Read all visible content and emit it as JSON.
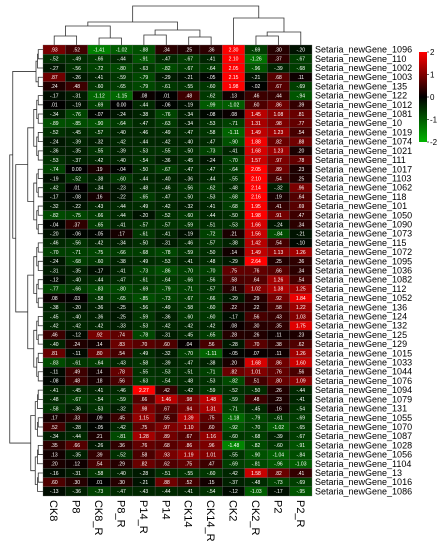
{
  "chart_data": {
    "type": "heatmap",
    "title": "",
    "columns": [
      "CK8",
      "P8",
      "CK8_R",
      "P8_R",
      "P14_R",
      "P14",
      "CK14",
      "CK14_R",
      "CK2",
      "CK2_R",
      "P2",
      "P2_R"
    ],
    "rows": [
      "Setaria_newGene_1096",
      "Setaria_newGene_110",
      "Setaria_newGene_1002",
      "Setaria_newGene_1003",
      "Setaria_newGene_135",
      "Setaria_newGene_122",
      "Setaria_newGene_1012",
      "Setaria_newGene_1081",
      "Setaria_newGene_10",
      "Setaria_newGene_1019",
      "Setaria_newGene_1074",
      "Setaria_newGene_1021",
      "Setaria_newGene_111",
      "Setaria_newGene_1017",
      "Setaria_newGene_1103",
      "Setaria_newGene_1062",
      "Setaria_newGene_118",
      "Setaria_newGene_101",
      "Setaria_newGene_1050",
      "Setaria_newGene_1090",
      "Setaria_newGene_1073",
      "Setaria_newGene_115",
      "Setaria_newGene_1072",
      "Setaria_newGene_1095",
      "Setaria_newGene_1036",
      "Setaria_newGene_1082",
      "Setaria_newGene_112",
      "Setaria_newGene_1052",
      "Setaria_newGene_136",
      "Setaria_newGene_124",
      "Setaria_newGene_132",
      "Setaria_newGene_125",
      "Setaria_newGene_129",
      "Setaria_newGene_1015",
      "Setaria_newGene_1033",
      "Setaria_newGene_1044",
      "Setaria_newGene_1076",
      "Setaria_newGene_1094",
      "Setaria_newGene_1079",
      "Setaria_newGene_131",
      "Setaria_newGene_1055",
      "Setaria_newGene_1070",
      "Setaria_newGene_1087",
      "Setaria_newGene_1028",
      "Setaria_newGene_1056",
      "Setaria_newGene_1104",
      "Setaria_newGene_13",
      "Setaria_newGene_1016",
      "Setaria_newGene_1086"
    ],
    "values": [
      [
        0.93,
        0.52,
        -1.41,
        -1.02,
        -0.88,
        0.34,
        0.25,
        0.36,
        2.3,
        -0.69,
        0.3,
        -0.2
      ],
      [
        -0.52,
        -0.49,
        -0.66,
        -0.44,
        -0.91,
        -0.47,
        -0.67,
        -0.41,
        2.1,
        -1.26,
        0.37,
        -0.67
      ],
      [
        -0.27,
        -0.56,
        -0.72,
        -0.8,
        -0.63,
        -0.82,
        -0.67,
        -0.64,
        2.05,
        -0.96,
        -0.39,
        -0.68
      ],
      [
        0.87,
        -0.26,
        -0.41,
        -0.59,
        -0.79,
        -0.29,
        -0.21,
        -0.05,
        2.15,
        -0.21,
        0.68,
        0.11
      ],
      [
        0.24,
        0.48,
        -0.6,
        -0.65,
        -0.79,
        -0.61,
        -0.55,
        -0.6,
        1.98,
        -0.02,
        0.67,
        -0.69
      ],
      [
        -0.17,
        -0.31,
        -1.12,
        -1.15,
        0.08,
        0.01,
        0.48,
        -0.62,
        0.13,
        0.46,
        0.44,
        -0.94
      ],
      [
        0.01,
        -0.19,
        -0.69,
        0.0,
        -0.44,
        -0.06,
        -0.19,
        -0.99,
        -1.02,
        0.6,
        0.86,
        0.39
      ],
      [
        -0.34,
        -0.76,
        -0.07,
        -0.24,
        -0.38,
        -0.76,
        -0.34,
        -0.08,
        0.08,
        1.45,
        1.08,
        0.81
      ],
      [
        -0.89,
        -0.85,
        -0.9,
        -0.64,
        -0.47,
        -0.63,
        -0.34,
        -0.53,
        -0.71,
        1.31,
        0.98,
        0.77
      ],
      [
        -0.52,
        -0.45,
        -0.57,
        -0.4,
        -0.46,
        -0.49,
        -0.47,
        -0.58,
        -1.11,
        1.49,
        1.23,
        0.54
      ],
      [
        -0.24,
        -0.39,
        -0.32,
        -0.42,
        -0.44,
        -0.42,
        -0.4,
        -0.47,
        -0.9,
        1.88,
        0.82,
        0.88
      ],
      [
        -0.36,
        -0.35,
        -0.55,
        -0.39,
        -0.53,
        -0.55,
        -0.5,
        -0.73,
        -0.41,
        1.68,
        1.23,
        0.2
      ],
      [
        -0.53,
        -0.37,
        -0.42,
        -0.4,
        -0.54,
        -0.36,
        -0.45,
        -0.24,
        -0.7,
        1.57,
        0.97,
        0.78
      ],
      [
        -0.74,
        0.0,
        0.19,
        -0.04,
        -0.5,
        -0.67,
        -0.47,
        -0.47,
        -0.64,
        2.05,
        0.89,
        0.23
      ],
      [
        -0.19,
        -0.52,
        -0.38,
        -0.6,
        -0.44,
        -0.4,
        -0.36,
        -0.44,
        -0.55,
        2.1,
        0.54,
        0.25
      ],
      [
        -0.42,
        0.01,
        -0.34,
        -0.23,
        -0.48,
        -0.46,
        -0.56,
        -0.62,
        -0.48,
        2.14,
        -0.32,
        0.96
      ],
      [
        -0.17,
        -0.08,
        0.16,
        -0.22,
        -0.65,
        -0.47,
        -0.5,
        -0.53,
        -0.68,
        2.16,
        0.19,
        0.64
      ],
      [
        -0.32,
        -0.22,
        -0.43,
        -0.44,
        -0.49,
        -0.42,
        -0.32,
        -0.41,
        -0.68,
        1.95,
        0.41,
        0.69
      ],
      [
        -0.82,
        -0.75,
        -0.66,
        -0.44,
        -0.2,
        -0.52,
        -0.6,
        -0.44,
        -0.5,
        1.98,
        0.91,
        0.47
      ],
      [
        -0.04,
        0.37,
        -0.65,
        -0.41,
        -0.57,
        -0.57,
        -0.59,
        -0.51,
        -0.53,
        1.66,
        -0.24,
        0.34
      ],
      [
        -0.2,
        -0.06,
        -0.05,
        0.17,
        -0.61,
        -0.41,
        -0.19,
        -0.72,
        0.21,
        1.56,
        -0.84,
        -0.21
      ],
      [
        -0.46,
        -0.56,
        -0.42,
        -0.34,
        -0.5,
        -0.31,
        -0.46,
        -0.57,
        -0.38,
        1.42,
        0.54,
        -0.1
      ],
      [
        -0.7,
        -0.71,
        -0.75,
        -0.66,
        -0.68,
        -0.78,
        -0.59,
        -0.5,
        0.14,
        1.49,
        1.13,
        1.26
      ],
      [
        -0.24,
        -0.68,
        -0.6,
        -0.38,
        -0.49,
        -0.53,
        -0.41,
        -0.48,
        -0.29,
        2.64,
        0.25,
        0.36
      ],
      [
        -0.31,
        -0.35,
        -0.17,
        -0.41,
        -0.73,
        -0.86,
        -0.7,
        -0.7,
        0.75,
        0.76,
        0.66,
        0.34
      ],
      [
        -0.12,
        -0.4,
        -0.44,
        -0.47,
        -0.61,
        -0.64,
        -0.66,
        -0.56,
        0.58,
        0.64,
        1.26,
        0.54
      ],
      [
        -0.77,
        -0.66,
        -0.83,
        -0.8,
        -0.69,
        -0.79,
        -0.71,
        -0.57,
        0.31,
        1.02,
        1.38,
        1.25
      ],
      [
        0.08,
        0.03,
        -0.58,
        -0.65,
        -0.85,
        -0.73,
        -0.67,
        -0.66,
        -0.29,
        0.29,
        0.92,
        1.84
      ],
      [
        -0.38,
        -0.2,
        -0.36,
        -0.25,
        -0.56,
        -0.49,
        -0.58,
        -0.6,
        0.22,
        0.22,
        0.58,
        1.22
      ],
      [
        -0.45,
        -0.4,
        -0.36,
        -0.25,
        -0.59,
        -0.36,
        -0.6,
        -0.6,
        -0.17,
        0.56,
        0.43,
        1.03
      ],
      [
        -0.42,
        -0.42,
        -0.42,
        -0.33,
        -0.53,
        -0.42,
        -0.42,
        -0.42,
        0.08,
        0.3,
        0.35,
        1.75
      ],
      [
        0.46,
        -0.12,
        0.92,
        0.74,
        -0.78,
        -0.31,
        -0.45,
        -0.65,
        0.28,
        0.26,
        0.11,
        0.23
      ],
      [
        -0.4,
        0.24,
        0.14,
        0.83,
        0.7,
        0.6,
        0.04,
        0.56,
        -0.28,
        0.7,
        0.38,
        0.62
      ],
      [
        0.81,
        -0.11,
        0.8,
        0.54,
        -0.49,
        -0.32,
        -0.7,
        -1.11,
        -0.05,
        0.07,
        0.11,
        1.26
      ],
      [
        -0.83,
        -0.61,
        -0.64,
        -0.43,
        -0.58,
        -0.39,
        -0.47,
        -0.38,
        0.2,
        1.68,
        0.86,
        1.6
      ],
      [
        -0.11,
        0.49,
        0.14,
        0.78,
        -0.55,
        -0.53,
        -0.51,
        -0.71,
        0.82,
        1.01,
        0.76,
        0.56
      ],
      [
        -0.08,
        0.48,
        0.18,
        0.56,
        -0.63,
        -0.54,
        -0.48,
        -0.53,
        -0.82,
        0.51,
        0.8,
        1.09
      ],
      [
        -0.41,
        -0.45,
        -0.41,
        -0.46,
        2.27,
        0.42,
        -0.42,
        -0.59,
        -0.52,
        -0.5,
        0.26,
        -0.44
      ],
      [
        -0.48,
        -0.67,
        -0.54,
        -0.59,
        0.66,
        1.46,
        0.98,
        1.48,
        -0.59,
        0.48,
        0.23,
        -0.41
      ],
      [
        -0.58,
        -0.36,
        -0.53,
        -0.32,
        0.98,
        0.67,
        0.94,
        1.31,
        -0.71,
        -0.45,
        0.16,
        -0.54
      ],
      [
        0.17,
        0.33,
        0.09,
        0.45,
        1.15,
        0.55,
        1.39,
        0.75,
        -1.18,
        -0.79,
        -0.61,
        -0.69
      ],
      [
        0.52,
        -0.28,
        -0.05,
        -0.42,
        0.75,
        0.97,
        1.1,
        0.6,
        -0.92,
        -0.7,
        -1.02,
        -0.65
      ],
      [
        -0.34,
        -0.44,
        0.21,
        -0.81,
        1.28,
        0.89,
        0.67,
        1.16,
        -0.6,
        -0.68,
        -0.39,
        -0.67
      ],
      [
        0.35,
        0.66,
        -0.26,
        0.36,
        0.76,
        0.68,
        0.86,
        0.96,
        -1.48,
        -0.82,
        -0.6,
        -0.91
      ],
      [
        0.13,
        -0.35,
        0.39,
        -0.52,
        0.58,
        0.93,
        1.19,
        1.01,
        -0.55,
        -0.9,
        -1.04,
        -0.84
      ],
      [
        0.2,
        0.12,
        0.54,
        0.29,
        0.82,
        0.62,
        0.75,
        0.47,
        -0.69,
        -0.81,
        -0.96,
        -1.03
      ],
      [
        -0.16,
        -0.31,
        -0.58,
        -0.4,
        -0.28,
        -0.51,
        -0.55,
        -0.6,
        -0.42,
        1.58,
        0.82,
        0.41
      ],
      [
        0.6,
        0.3,
        0.01,
        0.3,
        -0.21,
        0.88,
        0.52,
        0.15,
        -0.37,
        -0.48,
        -0.73,
        -0.69
      ],
      [
        -0.13,
        -0.36,
        -0.73,
        -0.47,
        -0.43,
        -0.44,
        -0.41,
        -0.54,
        -0.12,
        -1.03,
        -0.17,
        -0.95
      ]
    ],
    "color_scale": {
      "min": -2,
      "max": 2,
      "low": "#00b400",
      "mid": "#000000",
      "high": "#ff0000"
    },
    "colorbar_ticks": [
      2,
      1,
      0,
      -1,
      -2
    ],
    "column_dendrogram": true,
    "row_dendrogram": true
  }
}
